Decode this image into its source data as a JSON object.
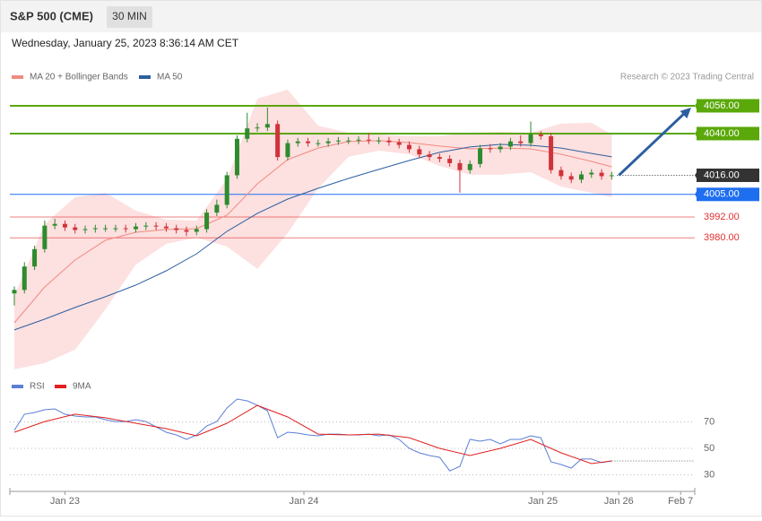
{
  "chart_data": [
    {
      "type": "candlestick",
      "title": "S&P 500 (CME)",
      "timeframe": "30 MIN",
      "subtitle": "Wednesday, January 25, 2023 8:36:14 AM CET",
      "credit": "Research © 2023 Trading Central",
      "up_color": "#2e8b2e",
      "down_color": "#d0333a",
      "open": [
        3948,
        3950,
        3963.5,
        3973.5,
        3987,
        3988,
        3986,
        3984.5,
        3985,
        3985.5,
        3985.5,
        3985.5,
        3985,
        3986.5,
        3987,
        3986.5,
        3985.5,
        3984.5,
        3983.5,
        3985,
        3994.5,
        3999,
        4016,
        4037,
        4043,
        4043.5,
        4045.5,
        4026.5,
        4034.5,
        4035.5,
        4034.5,
        4034.5,
        4035.5,
        4036,
        4036,
        4036.5,
        4036,
        4036,
        4035,
        4033.5,
        4031,
        4028,
        4026.5,
        4025.5,
        4023,
        4019,
        4022.5,
        4031.5,
        4031,
        4032.5,
        4035.5,
        4034.5,
        4039.5,
        4038.5,
        4019,
        4015.5,
        4013.5,
        4016.5,
        4017.5,
        4015.5
      ],
      "high": [
        3952,
        3966,
        3975.5,
        3990,
        3991,
        3990,
        3988,
        3987,
        3987.5,
        3987.5,
        3987.5,
        3987.5,
        3988.5,
        3989,
        3989,
        3988.5,
        3987.5,
        3986.5,
        3987,
        3996.5,
        4002,
        4018,
        4039,
        4052,
        4046,
        4055,
        4047.5,
        4036.5,
        4037.5,
        4037.5,
        4036.5,
        4037.5,
        4038,
        4038,
        4038.5,
        4040.5,
        4038,
        4038,
        4037,
        4035.5,
        4033,
        4030,
        4028.5,
        4027.5,
        4025,
        4024.5,
        4033.5,
        4034,
        4034.5,
        4037.5,
        4039,
        4047,
        4041.5,
        4040.5,
        4021,
        4017.5,
        4018.5,
        4019.5,
        4019.5,
        4018
      ],
      "low": [
        3941,
        3948,
        3961.5,
        3971.5,
        3985,
        3984,
        3982.5,
        3982.5,
        3983,
        3983.5,
        3983.5,
        3983,
        3983,
        3984.5,
        3984.5,
        3983.5,
        3982.5,
        3981,
        3981.5,
        3983,
        3992.5,
        3997,
        4014,
        4035,
        4041,
        4041.5,
        4024.5,
        4024.5,
        4032.5,
        4032.5,
        4032.5,
        4032.5,
        4033.5,
        4034,
        4034,
        4034,
        4034,
        4033,
        4031.5,
        4029,
        4026,
        4024.5,
        4023.5,
        4021,
        4006,
        4017,
        4020.5,
        4029,
        4029,
        4030.5,
        4032.5,
        4032.5,
        4036.5,
        4017,
        4013.5,
        4011.5,
        4011.5,
        4014.5,
        4013.5,
        4013.5
      ],
      "close": [
        3950,
        3963.5,
        3973.5,
        3987,
        3988,
        3986,
        3984.5,
        3985,
        3985.5,
        3985.5,
        3985.5,
        3985,
        3986.5,
        3987,
        3986.5,
        3985.5,
        3984.5,
        3983.5,
        3985,
        3994.5,
        3999,
        4016,
        4037,
        4043,
        4043.5,
        4045.5,
        4026.5,
        4034.5,
        4035.5,
        4034.5,
        4034.5,
        4035.5,
        4036,
        4036,
        4036.5,
        4036,
        4036,
        4035,
        4033.5,
        4031,
        4028,
        4026.5,
        4025.5,
        4023,
        4019,
        4022.5,
        4031.5,
        4031,
        4032.5,
        4035.5,
        4034.5,
        4039.5,
        4038.5,
        4019,
        4015.5,
        4013.5,
        4016.5,
        4017.5,
        4015.5,
        4016
      ],
      "line_x": [
        0,
        3,
        6,
        9,
        12,
        15,
        18,
        21,
        24,
        27,
        30,
        33,
        36,
        39,
        42,
        45,
        48,
        51,
        54,
        57,
        59
      ],
      "lines": [
        {
          "name": "MA 20 + Bollinger Bands",
          "color": "#f08a80",
          "band_color": "#fde0e0",
          "values": [
            3931.1,
            3951.7,
            3967.2,
            3978.6,
            3983.2,
            3984.8,
            3985.3,
            3993,
            4011.1,
            4025,
            4031.7,
            4035.4,
            4035.9,
            4034.8,
            4032.8,
            4031.2,
            4031.7,
            4031.2,
            4028.1,
            4024,
            4020.9
          ],
          "upper": [
            3946.6,
            3987.9,
            4003.4,
            4005.9,
            3995.6,
            3990.5,
            3989.9,
            4013.7,
            4060.1,
            4065.3,
            4044.6,
            4040.5,
            4039.5,
            4038.5,
            4038.5,
            4040.5,
            4041,
            4040.5,
            4045.7,
            4046.2,
            4039.5
          ],
          "lower": [
            3904.3,
            3907.9,
            3915.6,
            3938.8,
            3964.6,
            3976.5,
            3980.1,
            3975,
            3962.1,
            3982.7,
            4008.5,
            4026.6,
            4030.2,
            4028.1,
            4021.4,
            4016.3,
            4016.3,
            4017.8,
            4009.5,
            4005.9,
            4003.4
          ]
        },
        {
          "name": "MA 50",
          "color": "#2d5f9e",
          "values": [
            3927,
            3933.2,
            3939.9,
            3946.1,
            3952.8,
            3961,
            3970.8,
            3983.7,
            3994.1,
            4002.3,
            4008.5,
            4014.2,
            4019.4,
            4024.5,
            4029.2,
            4032.3,
            4033.8,
            4033.3,
            4031.7,
            4028.6,
            4026.6
          ]
        }
      ],
      "levels": [
        {
          "value": 4056,
          "label": "4056.00",
          "color": "#5aa80a",
          "style": "box",
          "line": "solid"
        },
        {
          "value": 4040,
          "label": "4040.00",
          "color": "#5aa80a",
          "style": "box",
          "line": "solid"
        },
        {
          "value": 4016,
          "label": "4016.00",
          "color": "#333333",
          "style": "box",
          "line": "dotted"
        },
        {
          "value": 4005,
          "label": "4005.00",
          "color": "#1e6ef0",
          "style": "box",
          "line": "solid"
        },
        {
          "value": 3992,
          "label": "3992.00",
          "color": "#e03030",
          "style": "text",
          "line": "solid"
        },
        {
          "value": 3980,
          "label": "3980.00",
          "color": "#e03030",
          "style": "text",
          "line": "solid"
        }
      ],
      "forecast_color": "#2d5f9e",
      "xlim": [
        -0.44,
        67.2
      ],
      "xticks": [
        {
          "value": 5,
          "label": "Jan 23"
        },
        {
          "value": 28.6,
          "label": "Jan 24"
        },
        {
          "value": 52.2,
          "label": "Jan 25"
        },
        {
          "value": 59.7,
          "label": "Jan 26"
        },
        {
          "value": 65.8,
          "label": "Feb 7"
        }
      ],
      "ylim": [
        3903,
        4066
      ]
    },
    {
      "type": "line",
      "series": [
        {
          "name": "RSI",
          "color": "#5b7fd6",
          "x": [
            0,
            1,
            2,
            3,
            4,
            5,
            6,
            7,
            8,
            9,
            10,
            11,
            12,
            13,
            14,
            15,
            16,
            17,
            18,
            19,
            20,
            21,
            22,
            23,
            24,
            25,
            26,
            27,
            28,
            29,
            30,
            31,
            32,
            33,
            34,
            35,
            36,
            37,
            38,
            39,
            40,
            41,
            42,
            43,
            44,
            45,
            46,
            47,
            48,
            49,
            50,
            51,
            52,
            53,
            54,
            55,
            56,
            57,
            58,
            59
          ],
          "values": [
            63.6,
            75.8,
            77.1,
            79.2,
            79.8,
            75.8,
            74.4,
            73.7,
            73.7,
            71.7,
            70.3,
            70.3,
            71.7,
            70.3,
            66.3,
            62.2,
            60.2,
            56.8,
            60.2,
            66.9,
            70.3,
            80.5,
            87.3,
            85.9,
            82.5,
            78.5,
            58.1,
            62.2,
            61.5,
            60.2,
            59.5,
            60.8,
            60.8,
            60.2,
            60.2,
            60.8,
            59.5,
            60.2,
            56.8,
            50,
            46.6,
            44.6,
            43.2,
            33,
            36.4,
            56.8,
            55.4,
            56.8,
            53.4,
            56.8,
            56.8,
            59.5,
            58.1,
            39.8,
            37.8,
            35.1,
            41.9,
            41.9,
            39.2,
            40.5
          ]
        },
        {
          "name": "9MA",
          "color": "#e02020",
          "x": [
            0,
            3,
            6,
            9,
            12,
            15,
            18,
            21,
            24,
            27,
            30,
            33,
            36,
            39,
            42,
            45,
            48,
            51,
            54,
            57,
            59
          ],
          "values": [
            62.2,
            70.3,
            75.8,
            73.1,
            69,
            64.9,
            59.5,
            69,
            82.5,
            73.7,
            60.8,
            60.2,
            60.8,
            58.1,
            50,
            44.6,
            50,
            56.8,
            46.6,
            38.5,
            40.5
          ]
        }
      ],
      "ylim": [
        20,
        90
      ],
      "yticks": [
        30,
        50,
        70
      ]
    }
  ]
}
